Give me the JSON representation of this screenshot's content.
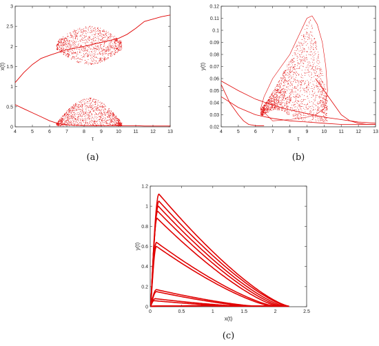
{
  "chart_data": [
    {
      "type": "scatter",
      "panel_label": "(a)",
      "xlabel": "τ",
      "ylabel": "x(t)",
      "xlim": [
        4,
        13
      ],
      "ylim": [
        0,
        3
      ],
      "xticks": [
        "4",
        "5",
        "6",
        "7",
        "8",
        "9",
        "10",
        "11",
        "12",
        "13"
      ],
      "yticks": [
        "0",
        "0.5",
        "1",
        "1.5",
        "2",
        "2.5",
        "3"
      ],
      "series_color": "#e00000",
      "upper_branch": {
        "x": [
          4.0,
          4.5,
          5.0,
          5.5,
          6.0,
          6.5,
          7.0,
          8.0,
          9.0,
          10.0,
          10.5,
          11.0,
          11.5,
          12.0,
          12.5,
          13.0
        ],
        "y": [
          1.1,
          1.35,
          1.55,
          1.7,
          1.78,
          1.85,
          1.92,
          2.0,
          2.1,
          2.2,
          2.3,
          2.45,
          2.62,
          2.68,
          2.74,
          2.78
        ]
      },
      "upper_chaotic_region": {
        "tau_range": [
          6.4,
          10.2
        ],
        "x_range": [
          1.5,
          2.45
        ]
      },
      "lower_branch": {
        "x": [
          4.0,
          4.5,
          5.0,
          5.5,
          6.0,
          6.5,
          7.0,
          8.0,
          9.0,
          10.0,
          10.5,
          11.0,
          11.5,
          12.0,
          12.5,
          13.0
        ],
        "y": [
          0.55,
          0.45,
          0.35,
          0.25,
          0.15,
          0.08,
          0.05,
          0.03,
          0.03,
          0.03,
          0.03,
          0.03,
          0.02,
          0.02,
          0.02,
          0.02
        ]
      },
      "lower_chaotic_region": {
        "tau_range": [
          6.4,
          10.2
        ],
        "x_range": [
          0.02,
          0.7
        ]
      }
    },
    {
      "type": "scatter",
      "panel_label": "(b)",
      "xlabel": "τ",
      "ylabel": "y(t)",
      "xlim": [
        4,
        13
      ],
      "ylim": [
        0.02,
        0.12
      ],
      "xticks": [
        "4",
        "5",
        "6",
        "7",
        "8",
        "9",
        "10",
        "11",
        "12",
        "13"
      ],
      "yticks": [
        "0.02",
        "0.03",
        "0.04",
        "0.05",
        "0.06",
        "0.07",
        "0.08",
        "0.09",
        "0.1",
        "0.11",
        "0.12"
      ],
      "series_color": "#e00000",
      "chaotic_region_outline": {
        "x": [
          6.3,
          6.5,
          7.0,
          7.5,
          8.0,
          8.5,
          9.0,
          9.3,
          9.6,
          9.9,
          10.1,
          10.2,
          10.0,
          9.5,
          9.0,
          8.0,
          7.0,
          6.3
        ],
        "y": [
          0.035,
          0.045,
          0.06,
          0.07,
          0.08,
          0.095,
          0.11,
          0.112,
          0.105,
          0.09,
          0.07,
          0.05,
          0.035,
          0.03,
          0.028,
          0.026,
          0.025,
          0.035
        ]
      },
      "branch_lines": [
        {
          "x": [
            4.0,
            5.0,
            6.0,
            7.0,
            8.0,
            9.0,
            10.0,
            11.0,
            12.0,
            13.0
          ],
          "y": [
            0.058,
            0.05,
            0.043,
            0.038,
            0.034,
            0.031,
            0.028,
            0.026,
            0.024,
            0.023
          ]
        },
        {
          "x": [
            4.0,
            5.0,
            6.0,
            7.0,
            8.0,
            9.0,
            10.0,
            11.0,
            12.0,
            13.0
          ],
          "y": [
            0.045,
            0.036,
            0.03,
            0.027,
            0.025,
            0.024,
            0.023,
            0.022,
            0.022,
            0.022
          ]
        },
        {
          "x": [
            4.0,
            4.5,
            5.0,
            5.3,
            5.6,
            6.0,
            6.5
          ],
          "y": [
            0.055,
            0.04,
            0.03,
            0.025,
            0.022,
            0.021,
            0.021
          ]
        },
        {
          "x": [
            9.5,
            10.0,
            10.5,
            11.0,
            11.5,
            12.0,
            12.5,
            13.0
          ],
          "y": [
            0.06,
            0.05,
            0.04,
            0.03,
            0.025,
            0.023,
            0.022,
            0.022
          ]
        }
      ]
    },
    {
      "type": "line",
      "panel_label": "(c)",
      "xlabel": "x(t)",
      "ylabel": "y(t)",
      "xlim": [
        0,
        2.5
      ],
      "ylim": [
        0,
        1.2
      ],
      "xticks": [
        "0",
        "0.5",
        "1",
        "1.5",
        "2",
        "2.5"
      ],
      "yticks": [
        "0",
        "0.2",
        "0.4",
        "0.6",
        "0.8",
        "1",
        "1.2"
      ],
      "series_color": "#e00000",
      "loops": [
        {
          "peak_x": 0.14,
          "peak_y": 1.12,
          "end_x": 2.22
        },
        {
          "peak_x": 0.14,
          "peak_y": 1.05,
          "end_x": 2.2
        },
        {
          "peak_x": 0.13,
          "peak_y": 1.0,
          "end_x": 2.15
        },
        {
          "peak_x": 0.12,
          "peak_y": 0.95,
          "end_x": 2.1
        },
        {
          "peak_x": 0.11,
          "peak_y": 0.88,
          "end_x": 2.05
        },
        {
          "peak_x": 0.1,
          "peak_y": 0.64,
          "end_x": 2.0
        },
        {
          "peak_x": 0.1,
          "peak_y": 0.6,
          "end_x": 1.95
        },
        {
          "peak_x": 0.1,
          "peak_y": 0.17,
          "end_x": 1.7
        },
        {
          "peak_x": 0.1,
          "peak_y": 0.15,
          "end_x": 1.6
        },
        {
          "peak_x": 0.08,
          "peak_y": 0.08,
          "end_x": 1.5
        },
        {
          "peak_x": 0.06,
          "peak_y": 0.06,
          "end_x": 1.4
        }
      ]
    }
  ]
}
